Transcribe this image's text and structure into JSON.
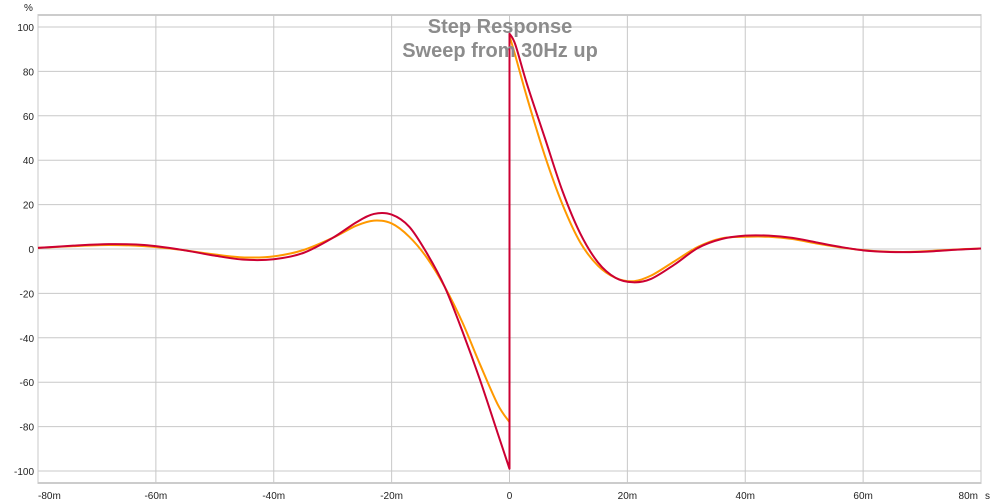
{
  "chart_data": {
    "type": "line",
    "title": "Step Response",
    "subtitle": "Sweep from 30Hz up",
    "ylabel": "%",
    "xunit": "s",
    "xlim": [
      -80,
      80
    ],
    "ylim": [
      -105,
      105
    ],
    "grid": true,
    "x_ticks": [
      {
        "value": -80,
        "label": "-80m"
      },
      {
        "value": -60,
        "label": "-60m"
      },
      {
        "value": -40,
        "label": "-40m"
      },
      {
        "value": -20,
        "label": "-20m"
      },
      {
        "value": 0,
        "label": "0"
      },
      {
        "value": 20,
        "label": "20m"
      },
      {
        "value": 40,
        "label": "40m"
      },
      {
        "value": 60,
        "label": "60m"
      },
      {
        "value": 80,
        "label": "80m"
      }
    ],
    "y_ticks": [
      {
        "value": 100,
        "label": "100"
      },
      {
        "value": 80,
        "label": "80"
      },
      {
        "value": 60,
        "label": "60"
      },
      {
        "value": 40,
        "label": "40"
      },
      {
        "value": 20,
        "label": "20"
      },
      {
        "value": 0,
        "label": "0"
      },
      {
        "value": -20,
        "label": "-20"
      },
      {
        "value": -40,
        "label": "-40"
      },
      {
        "value": -60,
        "label": "-60"
      },
      {
        "value": -80,
        "label": "-80"
      },
      {
        "value": -100,
        "label": "-100"
      }
    ],
    "series": [
      {
        "color": "#ff9900",
        "x": [
          -80,
          -74,
          -68,
          -62,
          -56,
          -50,
          -45,
          -40,
          -35,
          -30,
          -26,
          -23,
          -20,
          -17,
          -14,
          -11,
          -8,
          -5,
          -2,
          0,
          0,
          1,
          3,
          6,
          9,
          12,
          15,
          18,
          21,
          24,
          28,
          32,
          36,
          40,
          44,
          48,
          52,
          56,
          60,
          64,
          68,
          72,
          76,
          80
        ],
        "y": [
          0.5,
          1.3,
          1.8,
          1.3,
          -0.3,
          -2.5,
          -3.8,
          -3.3,
          -0.5,
          5,
          10.5,
          12.8,
          11.5,
          5.5,
          -4,
          -17,
          -33,
          -52,
          -70,
          -78,
          96,
          87,
          68,
          42,
          20,
          3,
          -7.5,
          -13,
          -14.5,
          -12,
          -5.5,
          1,
          4.8,
          5.5,
          5.5,
          4.5,
          2.5,
          0.8,
          -0.5,
          -1.2,
          -1.3,
          -0.8,
          -0.2,
          0.2
        ]
      },
      {
        "color": "#cc0033",
        "x": [
          -80,
          -74,
          -68,
          -62,
          -56,
          -50,
          -45,
          -40,
          -35,
          -30,
          -26,
          -23,
          -20,
          -17,
          -14,
          -11,
          -8,
          -5,
          -2,
          0,
          0,
          1,
          3,
          6,
          9,
          12,
          15,
          18,
          21,
          24,
          28,
          32,
          36,
          40,
          44,
          48,
          52,
          56,
          60,
          64,
          68,
          72,
          76,
          80
        ],
        "y": [
          0.5,
          1.5,
          2.2,
          1.8,
          -0.2,
          -3,
          -4.8,
          -4.6,
          -1.8,
          5,
          12,
          15.8,
          15.5,
          10,
          -2,
          -17,
          -37,
          -59,
          -83,
          -99,
          97,
          92,
          74,
          50,
          26,
          7,
          -6,
          -13,
          -15,
          -13.5,
          -7,
          0.5,
          4.5,
          6,
          6,
          5,
          3,
          1,
          -0.6,
          -1.3,
          -1.4,
          -1,
          -0.3,
          0.2
        ]
      }
    ]
  }
}
